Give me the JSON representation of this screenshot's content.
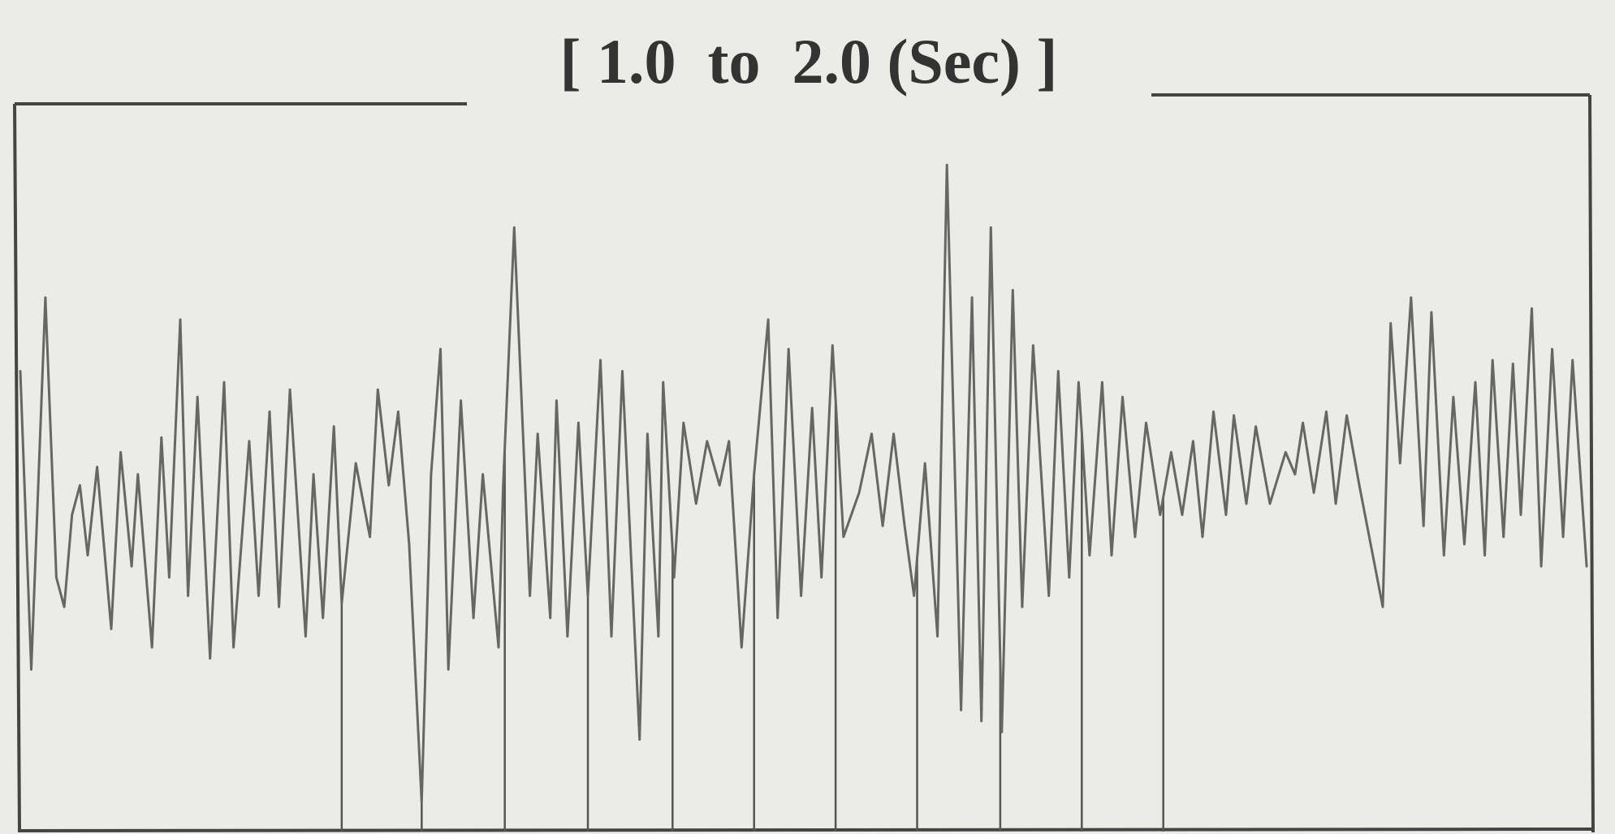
{
  "chart_data": {
    "type": "line",
    "title": "[ 1.0  to  2.0 (Sec) ]",
    "xlim": [
      1,
      2
    ],
    "ylim": [
      -1,
      1
    ],
    "color": "#666666",
    "marker_color": "#555555",
    "markers": [
      1.205,
      1.256,
      1.309,
      1.362,
      1.416,
      1.468,
      1.52,
      1.572,
      1.625,
      1.677,
      1.729
    ],
    "x": [
      1.0,
      1.007,
      1.016,
      1.023,
      1.028,
      1.033,
      1.038,
      1.043,
      1.049,
      1.058,
      1.064,
      1.071,
      1.075,
      1.084,
      1.09,
      1.095,
      1.102,
      1.107,
      1.113,
      1.121,
      1.13,
      1.136,
      1.146,
      1.152,
      1.159,
      1.165,
      1.172,
      1.182,
      1.187,
      1.193,
      1.2,
      1.205,
      1.214,
      1.223,
      1.228,
      1.235,
      1.241,
      1.248,
      1.256,
      1.262,
      1.268,
      1.273,
      1.281,
      1.289,
      1.295,
      1.305,
      1.308,
      1.315,
      1.325,
      1.33,
      1.338,
      1.342,
      1.349,
      1.356,
      1.362,
      1.37,
      1.377,
      1.384,
      1.395,
      1.4,
      1.407,
      1.41,
      1.417,
      1.423,
      1.431,
      1.438,
      1.446,
      1.452,
      1.46,
      1.468,
      1.477,
      1.483,
      1.49,
      1.498,
      1.505,
      1.511,
      1.518,
      1.525,
      1.535,
      1.543,
      1.55,
      1.557,
      1.564,
      1.57,
      1.577,
      1.585,
      1.591,
      1.6,
      1.607,
      1.613,
      1.619,
      1.626,
      1.633,
      1.639,
      1.646,
      1.656,
      1.662,
      1.669,
      1.675,
      1.682,
      1.69,
      1.696,
      1.703,
      1.711,
      1.718,
      1.727,
      1.734,
      1.741,
      1.748,
      1.754,
      1.761,
      1.769,
      1.774,
      1.782,
      1.788,
      1.797,
      1.807,
      1.813,
      1.818,
      1.825,
      1.833,
      1.839,
      1.846,
      1.854,
      1.869,
      1.874,
      1.88,
      1.887,
      1.895,
      1.9,
      1.908,
      1.914,
      1.921,
      1.928,
      1.934,
      1.939,
      1.946,
      1.952,
      1.957,
      1.964,
      1.97,
      1.977,
      1.984,
      1.99,
      1.999
    ],
    "values": [
      0.25,
      -0.56,
      0.45,
      -0.31,
      -0.39,
      -0.14,
      -0.06,
      -0.25,
      -0.01,
      -0.45,
      0.03,
      -0.28,
      -0.03,
      -0.5,
      0.07,
      -0.31,
      0.39,
      -0.36,
      0.18,
      -0.53,
      0.22,
      -0.5,
      0.06,
      -0.36,
      0.14,
      -0.39,
      0.2,
      -0.47,
      -0.03,
      -0.42,
      0.1,
      -0.38,
      0,
      -0.2,
      0.2,
      -0.06,
      0.14,
      -0.22,
      -0.92,
      -0.03,
      0.31,
      -0.56,
      0.17,
      -0.42,
      -0.03,
      -0.5,
      -0.06,
      0.64,
      -0.36,
      0.08,
      -0.42,
      0.17,
      -0.47,
      0.11,
      -0.36,
      0.28,
      -0.47,
      0.25,
      -0.75,
      0.08,
      -0.47,
      0.22,
      -0.31,
      0.11,
      -0.11,
      0.06,
      -0.06,
      0.06,
      -0.5,
      -0.03,
      0.39,
      -0.42,
      0.31,
      -0.36,
      0.15,
      -0.31,
      0.32,
      -0.2,
      -0.08,
      0.08,
      -0.17,
      0.08,
      -0.17,
      -0.36,
      0,
      -0.47,
      0.81,
      -0.67,
      0.45,
      -0.7,
      0.64,
      -0.73,
      0.47,
      -0.39,
      0.32,
      -0.36,
      0.25,
      -0.31,
      0.22,
      -0.25,
      0.22,
      -0.25,
      0.18,
      -0.2,
      0.11,
      -0.14,
      0.03,
      -0.14,
      0.06,
      -0.2,
      0.14,
      -0.14,
      0.13,
      -0.11,
      0.1,
      -0.11,
      0.03,
      -0.03,
      0.11,
      -0.08,
      0.14,
      -0.11,
      0.13,
      -0.06,
      -0.39,
      0.38,
      0,
      0.45,
      -0.17,
      0.41,
      -0.25,
      0.18,
      -0.22,
      0.22,
      -0.25,
      0.28,
      -0.2,
      0.27,
      -0.14,
      0.42,
      -0.28,
      0.31,
      -0.2,
      0.28,
      -0.28
    ]
  }
}
